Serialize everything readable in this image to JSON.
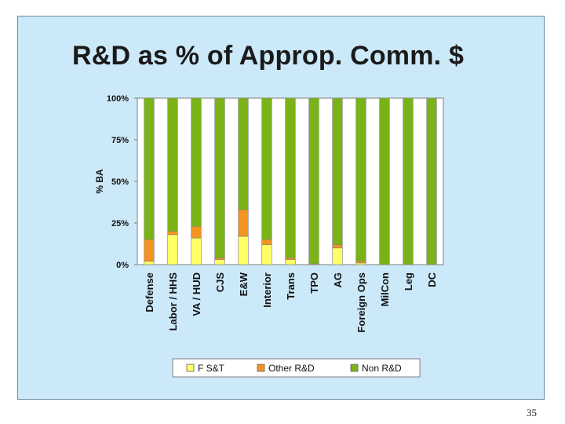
{
  "page": {
    "number": "35"
  },
  "chart_data": {
    "type": "bar",
    "stacked": true,
    "title": "R&D as % of Approp. Comm. $",
    "xlabel": "",
    "ylabel": "% BA",
    "ylim": [
      0,
      100
    ],
    "yticks": [
      0,
      25,
      50,
      75,
      100
    ],
    "ytick_labels": [
      "0%",
      "25%",
      "50%",
      "75%",
      "100%"
    ],
    "grid": false,
    "legend": "bottom",
    "categories": [
      "Defense",
      "Labor / HHS",
      "VA / HUD",
      "CJS",
      "E&W",
      "Interior",
      "Trans",
      "TPO",
      "AG",
      "Foreign Ops",
      "MilCon",
      "Leg",
      "DC"
    ],
    "series": [
      {
        "name": "F S&T",
        "color": "#ffff66",
        "values": [
          2,
          18,
          16,
          3,
          17,
          12,
          3,
          0,
          10,
          1,
          0,
          0,
          0
        ]
      },
      {
        "name": "Other R&D",
        "color": "#f39422",
        "values": [
          13,
          2,
          7,
          1,
          16,
          3,
          1,
          0.5,
          2,
          1,
          0,
          0,
          0
        ]
      },
      {
        "name": "Non R&D",
        "color": "#7ab317",
        "values": [
          85,
          80,
          77,
          96,
          67,
          85,
          96,
          99.5,
          88,
          98,
          100,
          100,
          100
        ]
      }
    ]
  }
}
